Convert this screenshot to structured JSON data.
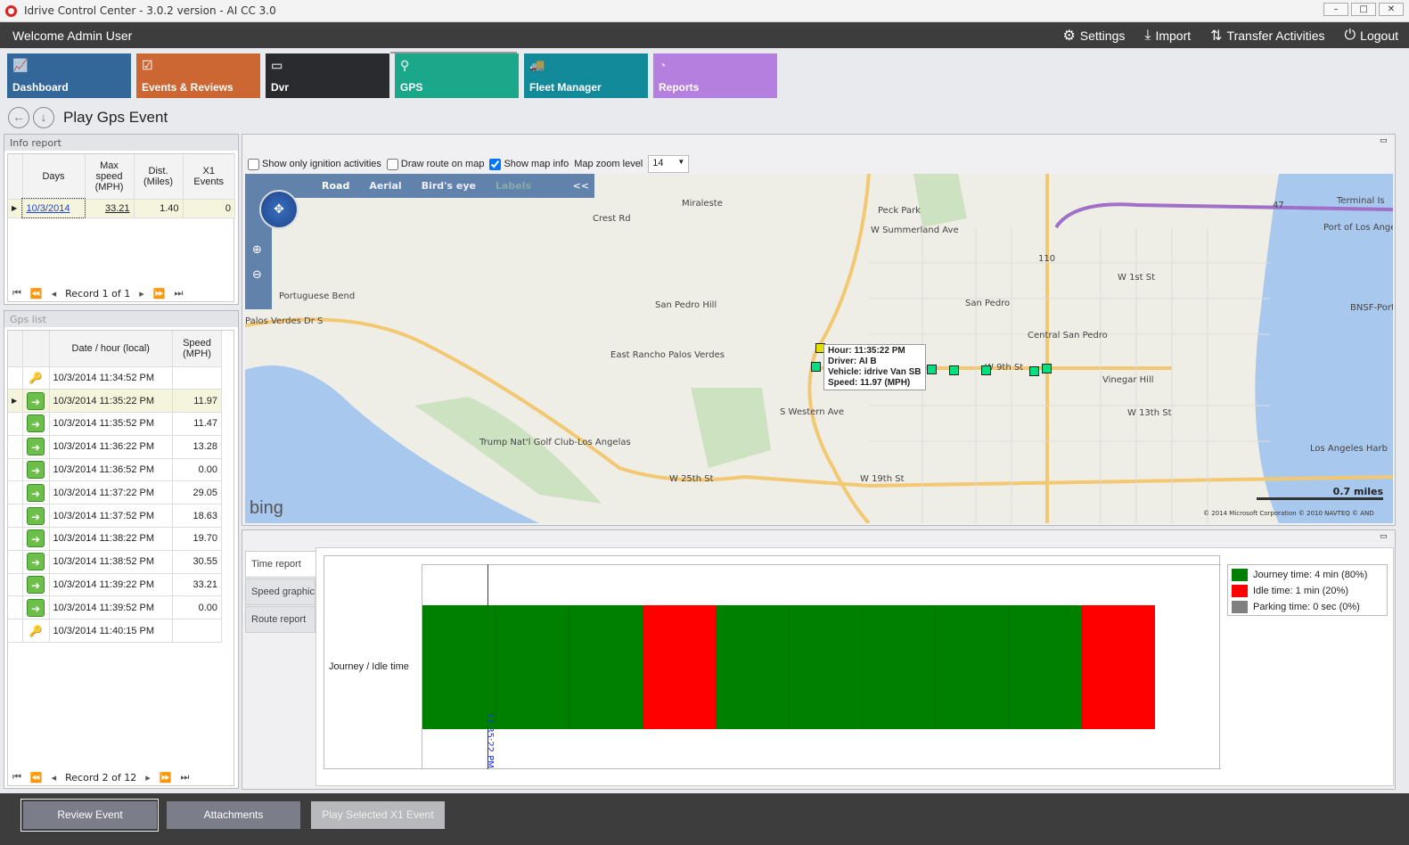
{
  "window": {
    "title": "Idrive Control Center - 3.0.2 version - AI CC 3.0",
    "controls": [
      "–",
      "□",
      "✕"
    ]
  },
  "topbar": {
    "welcome": "Welcome Admin User",
    "menu": [
      {
        "label": "Settings",
        "icon": "gear-icon",
        "glyph": "⚙"
      },
      {
        "label": "Import",
        "icon": "download-icon",
        "glyph": "⤓"
      },
      {
        "label": "Transfer Activities",
        "icon": "transfer-icon",
        "glyph": "⇅"
      },
      {
        "label": "Logout",
        "icon": "power-icon",
        "glyph": "⏻"
      }
    ]
  },
  "tiles": [
    {
      "label": "Dashboard",
      "color": "#336699",
      "glyph": "📈"
    },
    {
      "label": "Events & Reviews",
      "color": "#cc6633",
      "glyph": "☑"
    },
    {
      "label": "Dvr",
      "color": "#2a2b2f",
      "glyph": "▭"
    },
    {
      "label": "GPS",
      "color": "#1aa78a",
      "glyph": "⚲"
    },
    {
      "label": "Fleet Manager",
      "color": "#138a9a",
      "glyph": "🚚"
    },
    {
      "label": "Reports",
      "color": "#b57fe0",
      "glyph": "◔"
    }
  ],
  "page": {
    "title": "Play Gps Event"
  },
  "info_report": {
    "title": "Info report",
    "columns": [
      "Days",
      "Max speed (MPH)",
      "Dist. (Miles)",
      "X1 Events"
    ],
    "rows": [
      {
        "day": "10/3/2014",
        "max_speed": "33.21",
        "dist": "1.40",
        "events": "0"
      }
    ],
    "record": "Record 1 of 1"
  },
  "gps_list": {
    "title": "Gps list",
    "columns": [
      "Date / hour (local)",
      "Speed (MPH)"
    ],
    "rows": [
      {
        "time": "10/3/2014 11:34:52 PM",
        "speed": "",
        "icon": "ignition-on-icon"
      },
      {
        "time": "10/3/2014 11:35:22 PM",
        "speed": "11.97",
        "icon": "gps-point-icon"
      },
      {
        "time": "10/3/2014 11:35:52 PM",
        "speed": "11.47",
        "icon": "gps-point-icon"
      },
      {
        "time": "10/3/2014 11:36:22 PM",
        "speed": "13.28",
        "icon": "gps-point-icon"
      },
      {
        "time": "10/3/2014 11:36:52 PM",
        "speed": "0.00",
        "icon": "gps-point-icon"
      },
      {
        "time": "10/3/2014 11:37:22 PM",
        "speed": "29.05",
        "icon": "gps-point-icon"
      },
      {
        "time": "10/3/2014 11:37:52 PM",
        "speed": "18.63",
        "icon": "gps-point-icon"
      },
      {
        "time": "10/3/2014 11:38:22 PM",
        "speed": "19.70",
        "icon": "gps-point-icon"
      },
      {
        "time": "10/3/2014 11:38:52 PM",
        "speed": "30.55",
        "icon": "gps-point-icon"
      },
      {
        "time": "10/3/2014 11:39:22 PM",
        "speed": "33.21",
        "icon": "gps-point-icon"
      },
      {
        "time": "10/3/2014 11:39:52 PM",
        "speed": "0.00",
        "icon": "gps-point-icon"
      },
      {
        "time": "10/3/2014 11:40:15 PM",
        "speed": "",
        "icon": "ignition-off-icon"
      }
    ],
    "selected_index": 1,
    "record": "Record 2 of 12"
  },
  "map_options": {
    "ignition_only": {
      "label": "Show only ignition activities",
      "checked": false
    },
    "draw_route": {
      "label": "Draw route on map",
      "checked": false
    },
    "show_info": {
      "label": "Show map info",
      "checked": true
    },
    "zoom_label": "Map zoom level",
    "zoom_value": "14"
  },
  "map": {
    "modes": [
      "Road",
      "Aerial",
      "Bird's eye",
      "Labels"
    ],
    "collapse": "<<",
    "brand": "bing",
    "scale": "0.7 miles",
    "copyright": "© 2014 Microsoft Corporation   © 2010 NAVTEQ   © AND",
    "labels": [
      "Miraleste",
      "Peck Park",
      "W Summerland Ave",
      "Crest Rd",
      "Portuguese Bend",
      "Palos Verdes Dr S",
      "San Pedro Hill",
      "East Rancho Palos Verdes",
      "Trump Nat'l Golf Club-Los Angelas",
      "W 25th St",
      "San Pedro",
      "Central San Pedro",
      "Vinegar Hill",
      "W 19th St",
      "W 13th St",
      "W 1st St",
      "Los Angeles Harb",
      "Port of Los Angel",
      "Terminal Is",
      "BNSF-Port",
      "S Western Ave",
      "W 9th St",
      "47",
      "110"
    ],
    "tooltip": {
      "hour": "Hour: 11:35:22 PM",
      "driver": "Driver: AI B",
      "vehicle": "Vehicle: idrive Van SB",
      "speed": "Speed: 11.97 (MPH)"
    }
  },
  "report_tabs": [
    "Time report",
    "Speed graphic",
    "Route report"
  ],
  "chart_data": {
    "type": "bar",
    "orientation": "horizontal-timeline",
    "category": "Journey / Idle time",
    "segments": [
      "journey",
      "journey",
      "journey",
      "idle",
      "journey",
      "journey",
      "journey",
      "journey",
      "journey",
      "idle"
    ],
    "marker": "11:35:22 PM",
    "legend": [
      {
        "label": "Journey time: 4 min (80%)",
        "color": "#008000"
      },
      {
        "label": "Idle time: 1 min (20%)",
        "color": "#ff0000"
      },
      {
        "label": "Parking time: 0 sec (0%)",
        "color": "#808080"
      }
    ],
    "legend_position": "top-right"
  },
  "footer": {
    "review": "Review Event",
    "attachments": "Attachments",
    "play": "Play Selected X1 Event"
  }
}
